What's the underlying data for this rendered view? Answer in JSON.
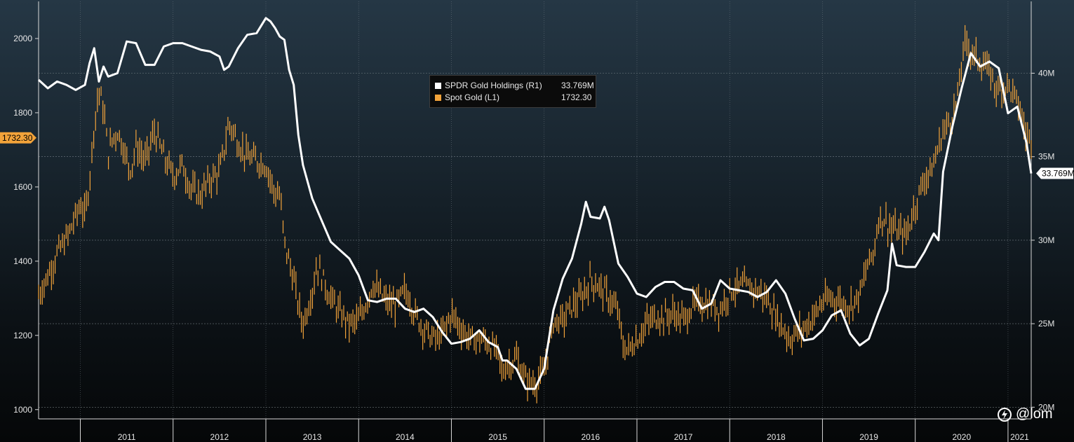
{
  "chart_data": {
    "type": "line",
    "x_axis": {
      "labels": [
        "2011",
        "2012",
        "2013",
        "2014",
        "2015",
        "2016",
        "2017",
        "2018",
        "2019",
        "2020",
        "2021"
      ],
      "range": [
        2010.55,
        2021.25
      ]
    },
    "left_axis": {
      "ticks": [
        "1000",
        "1200",
        "1400",
        "1600",
        "1800",
        "2000"
      ],
      "range": [
        975,
        2100
      ]
    },
    "right_axis": {
      "ticks": [
        "20M",
        "25M",
        "30M",
        "35M",
        "40M"
      ],
      "range": [
        19.3,
        44.3
      ],
      "unit": "M"
    },
    "grid": true,
    "legend": {
      "position": "top-center",
      "entries": [
        {
          "name": "SPDR Gold Holdings (R1)",
          "value": "33.769M",
          "color": "#ffffff"
        },
        {
          "name": "Spot Gold (L1)",
          "value": "1732.30",
          "color": "#f2a33a"
        }
      ]
    },
    "last_value_tags": {
      "left": "1732.30",
      "right": "33.769M"
    },
    "series": [
      {
        "name": "SPDR Gold Holdings (R1)",
        "axis": "right",
        "color": "#ffffff",
        "points": [
          [
            2010.55,
            39.6
          ],
          [
            2010.65,
            39.1
          ],
          [
            2010.75,
            39.5
          ],
          [
            2010.85,
            39.3
          ],
          [
            2010.95,
            39.0
          ],
          [
            2011.05,
            39.3
          ],
          [
            2011.1,
            40.6
          ],
          [
            2011.15,
            41.5
          ],
          [
            2011.2,
            39.5
          ],
          [
            2011.25,
            40.4
          ],
          [
            2011.3,
            39.8
          ],
          [
            2011.4,
            40.0
          ],
          [
            2011.5,
            41.9
          ],
          [
            2011.6,
            41.8
          ],
          [
            2011.7,
            40.5
          ],
          [
            2011.8,
            40.5
          ],
          [
            2011.9,
            41.6
          ],
          [
            2012.0,
            41.8
          ],
          [
            2012.1,
            41.8
          ],
          [
            2012.2,
            41.6
          ],
          [
            2012.3,
            41.4
          ],
          [
            2012.4,
            41.3
          ],
          [
            2012.5,
            41.0
          ],
          [
            2012.55,
            40.2
          ],
          [
            2012.6,
            40.4
          ],
          [
            2012.7,
            41.5
          ],
          [
            2012.8,
            42.3
          ],
          [
            2012.9,
            42.4
          ],
          [
            2013.0,
            43.3
          ],
          [
            2013.05,
            43.1
          ],
          [
            2013.1,
            42.7
          ],
          [
            2013.15,
            42.2
          ],
          [
            2013.2,
            42.0
          ],
          [
            2013.25,
            40.2
          ],
          [
            2013.3,
            39.3
          ],
          [
            2013.35,
            36.3
          ],
          [
            2013.4,
            34.5
          ],
          [
            2013.5,
            32.5
          ],
          [
            2013.6,
            31.2
          ],
          [
            2013.7,
            29.9
          ],
          [
            2013.8,
            29.4
          ],
          [
            2013.9,
            28.9
          ],
          [
            2014.0,
            27.9
          ],
          [
            2014.1,
            26.4
          ],
          [
            2014.2,
            26.3
          ],
          [
            2014.3,
            26.5
          ],
          [
            2014.4,
            26.5
          ],
          [
            2014.5,
            25.9
          ],
          [
            2014.6,
            25.7
          ],
          [
            2014.7,
            25.9
          ],
          [
            2014.8,
            25.4
          ],
          [
            2014.9,
            24.5
          ],
          [
            2015.0,
            23.8
          ],
          [
            2015.1,
            23.9
          ],
          [
            2015.2,
            24.1
          ],
          [
            2015.3,
            24.6
          ],
          [
            2015.4,
            23.9
          ],
          [
            2015.5,
            23.6
          ],
          [
            2015.55,
            22.8
          ],
          [
            2015.6,
            22.8
          ],
          [
            2015.7,
            22.3
          ],
          [
            2015.8,
            21.1
          ],
          [
            2015.9,
            21.1
          ],
          [
            2016.0,
            22.3
          ],
          [
            2016.1,
            25.8
          ],
          [
            2016.2,
            27.7
          ],
          [
            2016.3,
            28.9
          ],
          [
            2016.4,
            31.0
          ],
          [
            2016.45,
            32.3
          ],
          [
            2016.5,
            31.4
          ],
          [
            2016.6,
            31.3
          ],
          [
            2016.65,
            32.0
          ],
          [
            2016.7,
            31.2
          ],
          [
            2016.8,
            28.6
          ],
          [
            2016.9,
            27.8
          ],
          [
            2017.0,
            26.8
          ],
          [
            2017.1,
            26.6
          ],
          [
            2017.2,
            27.2
          ],
          [
            2017.3,
            27.5
          ],
          [
            2017.4,
            27.5
          ],
          [
            2017.5,
            27.1
          ],
          [
            2017.6,
            27.0
          ],
          [
            2017.7,
            25.9
          ],
          [
            2017.8,
            26.2
          ],
          [
            2017.9,
            27.6
          ],
          [
            2018.0,
            27.1
          ],
          [
            2018.1,
            27.0
          ],
          [
            2018.2,
            26.9
          ],
          [
            2018.3,
            26.6
          ],
          [
            2018.4,
            26.9
          ],
          [
            2018.5,
            27.6
          ],
          [
            2018.6,
            26.8
          ],
          [
            2018.7,
            25.3
          ],
          [
            2018.8,
            24.0
          ],
          [
            2018.9,
            24.1
          ],
          [
            2019.0,
            24.6
          ],
          [
            2019.1,
            25.5
          ],
          [
            2019.2,
            25.8
          ],
          [
            2019.3,
            24.4
          ],
          [
            2019.4,
            23.7
          ],
          [
            2019.5,
            24.1
          ],
          [
            2019.6,
            25.6
          ],
          [
            2019.7,
            27.0
          ],
          [
            2019.75,
            29.8
          ],
          [
            2019.8,
            28.5
          ],
          [
            2019.9,
            28.4
          ],
          [
            2020.0,
            28.4
          ],
          [
            2020.1,
            29.3
          ],
          [
            2020.2,
            30.4
          ],
          [
            2020.25,
            30.0
          ],
          [
            2020.3,
            34.1
          ],
          [
            2020.4,
            36.8
          ],
          [
            2020.5,
            39.1
          ],
          [
            2020.6,
            41.2
          ],
          [
            2020.7,
            40.4
          ],
          [
            2020.8,
            40.7
          ],
          [
            2020.9,
            40.3
          ],
          [
            2021.0,
            37.6
          ],
          [
            2021.1,
            38.0
          ],
          [
            2021.2,
            35.8
          ],
          [
            2021.25,
            34.0
          ]
        ]
      },
      {
        "name": "Spot Gold (L1)",
        "axis": "left",
        "color": "#f2a33a",
        "render": "bars",
        "points": [
          [
            2010.55,
            1310
          ],
          [
            2010.65,
            1360
          ],
          [
            2010.75,
            1420
          ],
          [
            2010.85,
            1460
          ],
          [
            2010.95,
            1520
          ],
          [
            2011.0,
            1555
          ],
          [
            2011.05,
            1520
          ],
          [
            2011.1,
            1620
          ],
          [
            2011.15,
            1770
          ],
          [
            2011.2,
            1860
          ],
          [
            2011.25,
            1810
          ],
          [
            2011.3,
            1690
          ],
          [
            2011.35,
            1730
          ],
          [
            2011.4,
            1750
          ],
          [
            2011.45,
            1720
          ],
          [
            2011.5,
            1670
          ],
          [
            2011.55,
            1650
          ],
          [
            2011.6,
            1710
          ],
          [
            2011.7,
            1670
          ],
          [
            2011.8,
            1750
          ],
          [
            2011.9,
            1680
          ],
          [
            2012.0,
            1630
          ],
          [
            2012.1,
            1660
          ],
          [
            2012.2,
            1590
          ],
          [
            2012.3,
            1580
          ],
          [
            2012.4,
            1620
          ],
          [
            2012.5,
            1640
          ],
          [
            2012.55,
            1700
          ],
          [
            2012.6,
            1770
          ],
          [
            2012.65,
            1750
          ],
          [
            2012.7,
            1720
          ],
          [
            2012.8,
            1680
          ],
          [
            2012.9,
            1670
          ],
          [
            2013.0,
            1660
          ],
          [
            2013.05,
            1620
          ],
          [
            2013.1,
            1580
          ],
          [
            2013.15,
            1580
          ],
          [
            2013.2,
            1450
          ],
          [
            2013.25,
            1400
          ],
          [
            2013.3,
            1350
          ],
          [
            2013.35,
            1280
          ],
          [
            2013.4,
            1230
          ],
          [
            2013.5,
            1320
          ],
          [
            2013.55,
            1390
          ],
          [
            2013.6,
            1360
          ],
          [
            2013.7,
            1300
          ],
          [
            2013.8,
            1260
          ],
          [
            2013.9,
            1230
          ],
          [
            2014.0,
            1240
          ],
          [
            2014.1,
            1300
          ],
          [
            2014.15,
            1340
          ],
          [
            2014.2,
            1320
          ],
          [
            2014.3,
            1290
          ],
          [
            2014.4,
            1280
          ],
          [
            2014.5,
            1320
          ],
          [
            2014.55,
            1300
          ],
          [
            2014.6,
            1260
          ],
          [
            2014.7,
            1220
          ],
          [
            2014.8,
            1190
          ],
          [
            2014.9,
            1200
          ],
          [
            2015.0,
            1260
          ],
          [
            2015.1,
            1220
          ],
          [
            2015.2,
            1190
          ],
          [
            2015.3,
            1190
          ],
          [
            2015.4,
            1180
          ],
          [
            2015.5,
            1150
          ],
          [
            2015.55,
            1100
          ],
          [
            2015.6,
            1120
          ],
          [
            2015.7,
            1140
          ],
          [
            2015.8,
            1080
          ],
          [
            2015.9,
            1070
          ],
          [
            2016.0,
            1100
          ],
          [
            2016.1,
            1240
          ],
          [
            2016.2,
            1240
          ],
          [
            2016.3,
            1280
          ],
          [
            2016.4,
            1300
          ],
          [
            2016.5,
            1350
          ],
          [
            2016.55,
            1340
          ],
          [
            2016.6,
            1330
          ],
          [
            2016.7,
            1300
          ],
          [
            2016.8,
            1260
          ],
          [
            2016.85,
            1170
          ],
          [
            2016.9,
            1160
          ],
          [
            2017.0,
            1190
          ],
          [
            2017.1,
            1230
          ],
          [
            2017.2,
            1250
          ],
          [
            2017.3,
            1250
          ],
          [
            2017.4,
            1260
          ],
          [
            2017.5,
            1240
          ],
          [
            2017.6,
            1280
          ],
          [
            2017.7,
            1290
          ],
          [
            2017.8,
            1280
          ],
          [
            2017.9,
            1270
          ],
          [
            2018.0,
            1320
          ],
          [
            2018.1,
            1330
          ],
          [
            2018.2,
            1330
          ],
          [
            2018.3,
            1320
          ],
          [
            2018.4,
            1300
          ],
          [
            2018.5,
            1250
          ],
          [
            2018.6,
            1210
          ],
          [
            2018.65,
            1190
          ],
          [
            2018.7,
            1200
          ],
          [
            2018.8,
            1220
          ],
          [
            2018.9,
            1250
          ],
          [
            2019.0,
            1290
          ],
          [
            2019.1,
            1300
          ],
          [
            2019.2,
            1290
          ],
          [
            2019.3,
            1280
          ],
          [
            2019.4,
            1310
          ],
          [
            2019.5,
            1400
          ],
          [
            2019.55,
            1420
          ],
          [
            2019.6,
            1510
          ],
          [
            2019.65,
            1520
          ],
          [
            2019.7,
            1500
          ],
          [
            2019.8,
            1480
          ],
          [
            2019.9,
            1470
          ],
          [
            2019.95,
            1510
          ],
          [
            2020.0,
            1550
          ],
          [
            2020.05,
            1590
          ],
          [
            2020.1,
            1620
          ],
          [
            2020.2,
            1660
          ],
          [
            2020.25,
            1710
          ],
          [
            2020.3,
            1750
          ],
          [
            2020.4,
            1790
          ],
          [
            2020.45,
            1830
          ],
          [
            2020.5,
            1930
          ],
          [
            2020.55,
            2000
          ],
          [
            2020.6,
            1960
          ],
          [
            2020.7,
            1940
          ],
          [
            2020.8,
            1910
          ],
          [
            2020.85,
            1880
          ],
          [
            2020.9,
            1860
          ],
          [
            2020.95,
            1870
          ],
          [
            2021.0,
            1880
          ],
          [
            2021.05,
            1850
          ],
          [
            2021.1,
            1830
          ],
          [
            2021.15,
            1790
          ],
          [
            2021.2,
            1730
          ],
          [
            2021.25,
            1732.3
          ]
        ]
      }
    ]
  },
  "watermark": {
    "text": "@lom"
  }
}
